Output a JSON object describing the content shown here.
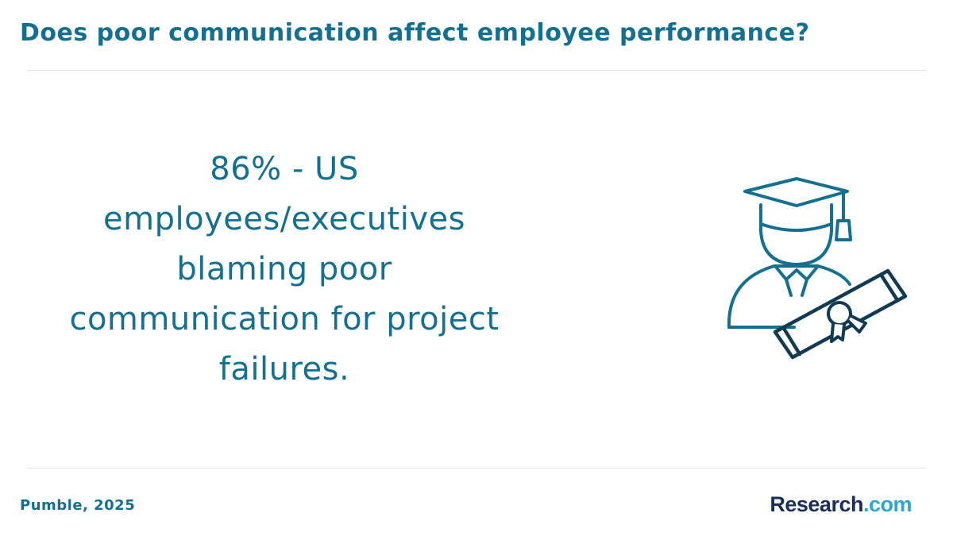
{
  "header": {
    "title": "Does poor communication affect employee performance?"
  },
  "main": {
    "statement": "86% - US employees/executives blaming poor communication for project failures.",
    "illustration_icon": "graduate-with-diploma-icon"
  },
  "footer": {
    "source": "Pumble, 2025",
    "brand_name": "Research",
    "brand_tld": ".com"
  },
  "colors": {
    "primary": "#15708f",
    "illustration_dark": "#123a52",
    "brand_dark": "#1a2e5a",
    "brand_accent": "#2fa7cc"
  }
}
